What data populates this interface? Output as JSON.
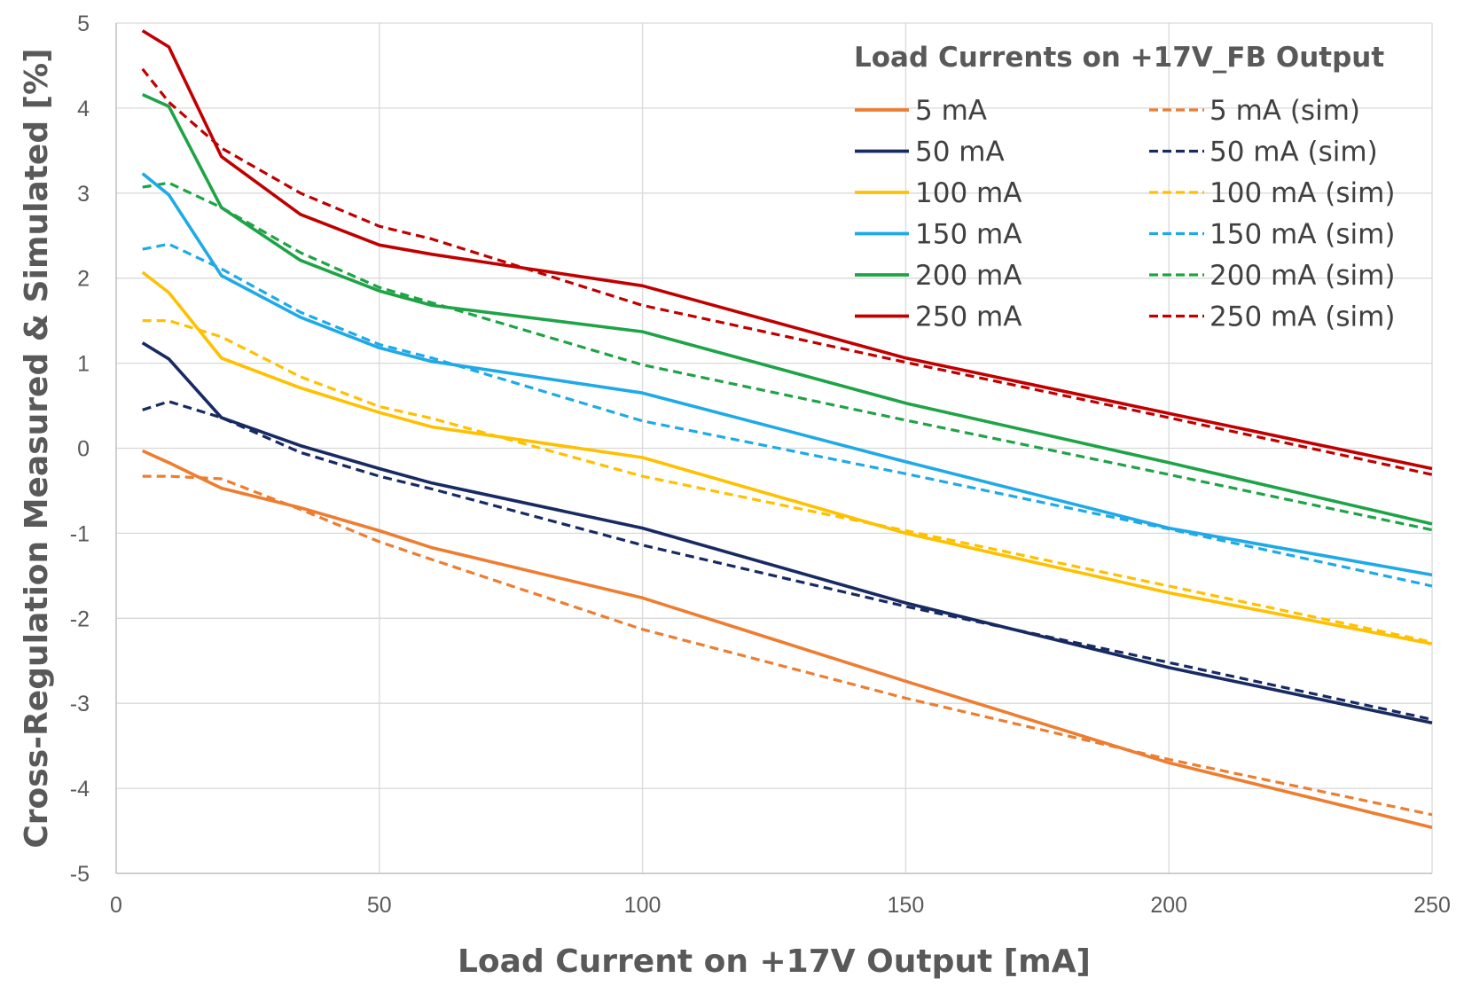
{
  "chart_data": {
    "type": "line",
    "title": "",
    "xlabel": "Load Current on +17V Output [mA]",
    "ylabel": "Cross-Regulation Measured & Simulated [%]",
    "xlim": [
      0,
      250
    ],
    "ylim": [
      -5,
      5
    ],
    "x_ticks": [
      0,
      50,
      100,
      150,
      200,
      250
    ],
    "y_ticks": [
      -5,
      -4,
      -3,
      -2,
      -1,
      0,
      1,
      2,
      3,
      4,
      5
    ],
    "grid": true,
    "legend": {
      "title": "Load Currents on +17V_FB Output",
      "position": "top-right",
      "columns": 2
    },
    "series": [
      {
        "name": "5 mA",
        "color": "#ED7D31",
        "style": "solid",
        "x": [
          5,
          10,
          20,
          35,
          50,
          60,
          100,
          150,
          200,
          250
        ],
        "y": [
          -0.03,
          -0.17,
          -0.47,
          -0.7,
          -0.97,
          -1.17,
          -1.76,
          -2.74,
          -3.7,
          -4.46
        ]
      },
      {
        "name": "50 mA",
        "color": "#172A62",
        "style": "solid",
        "x": [
          5,
          10,
          20,
          35,
          50,
          60,
          100,
          150,
          200,
          250
        ],
        "y": [
          1.24,
          1.05,
          0.36,
          0.03,
          -0.24,
          -0.41,
          -0.94,
          -1.82,
          -2.58,
          -3.23
        ]
      },
      {
        "name": "100 mA",
        "color": "#FFC000",
        "style": "solid",
        "x": [
          5,
          10,
          20,
          35,
          50,
          60,
          100,
          150,
          200,
          250
        ],
        "y": [
          2.07,
          1.83,
          1.06,
          0.71,
          0.42,
          0.25,
          -0.11,
          -1.0,
          -1.7,
          -2.3
        ]
      },
      {
        "name": "150 mA",
        "color": "#1FAAE7",
        "style": "solid",
        "x": [
          5,
          10,
          20,
          35,
          50,
          60,
          100,
          150,
          200,
          250
        ],
        "y": [
          3.23,
          2.98,
          2.03,
          1.54,
          1.18,
          1.02,
          0.65,
          -0.16,
          -0.94,
          -1.49
        ]
      },
      {
        "name": "200 mA",
        "color": "#1EA346",
        "style": "solid",
        "x": [
          5,
          10,
          20,
          35,
          50,
          60,
          100,
          150,
          200,
          250
        ],
        "y": [
          4.16,
          4.02,
          2.83,
          2.21,
          1.85,
          1.68,
          1.37,
          0.53,
          -0.17,
          -0.89
        ]
      },
      {
        "name": "250 mA",
        "color": "#C00000",
        "style": "solid",
        "x": [
          5,
          10,
          20,
          35,
          50,
          60,
          100,
          150,
          200,
          250
        ],
        "y": [
          4.91,
          4.72,
          3.43,
          2.75,
          2.39,
          2.28,
          1.91,
          1.06,
          0.41,
          -0.24
        ]
      },
      {
        "name": "5 mA (sim)",
        "color": "#ED7D31",
        "style": "dashed",
        "x": [
          5,
          10,
          20,
          35,
          50,
          60,
          100,
          150,
          200,
          250
        ],
        "y": [
          -0.33,
          -0.33,
          -0.36,
          -0.72,
          -1.1,
          -1.31,
          -2.13,
          -2.94,
          -3.66,
          -4.31
        ]
      },
      {
        "name": "50 mA (sim)",
        "color": "#172A62",
        "style": "dashed",
        "x": [
          5,
          10,
          20,
          35,
          50,
          60,
          100,
          150,
          200,
          250
        ],
        "y": [
          0.45,
          0.55,
          0.36,
          -0.05,
          -0.33,
          -0.48,
          -1.14,
          -1.86,
          -2.52,
          -3.19
        ]
      },
      {
        "name": "100 mA (sim)",
        "color": "#FFC000",
        "style": "dashed",
        "x": [
          5,
          10,
          20,
          35,
          50,
          60,
          100,
          150,
          200,
          250
        ],
        "y": [
          1.5,
          1.5,
          1.31,
          0.84,
          0.49,
          0.35,
          -0.33,
          -0.97,
          -1.62,
          -2.28
        ]
      },
      {
        "name": "150 mA (sim)",
        "color": "#1FAAE7",
        "style": "dashed",
        "x": [
          5,
          10,
          20,
          35,
          50,
          60,
          100,
          150,
          200,
          250
        ],
        "y": [
          2.34,
          2.4,
          2.11,
          1.6,
          1.22,
          1.06,
          0.32,
          -0.3,
          -0.95,
          -1.62
        ]
      },
      {
        "name": "200 mA (sim)",
        "color": "#1EA346",
        "style": "dashed",
        "x": [
          5,
          10,
          20,
          35,
          50,
          60,
          100,
          150,
          200,
          250
        ],
        "y": [
          3.07,
          3.12,
          2.83,
          2.3,
          1.89,
          1.71,
          0.98,
          0.33,
          -0.31,
          -0.96
        ]
      },
      {
        "name": "250 mA (sim)",
        "color": "#C00000",
        "style": "dashed",
        "x": [
          5,
          10,
          20,
          35,
          50,
          60,
          100,
          150,
          200,
          250
        ],
        "y": [
          4.46,
          4.07,
          3.53,
          3.0,
          2.61,
          2.46,
          1.68,
          1.01,
          0.36,
          -0.31
        ]
      }
    ]
  }
}
